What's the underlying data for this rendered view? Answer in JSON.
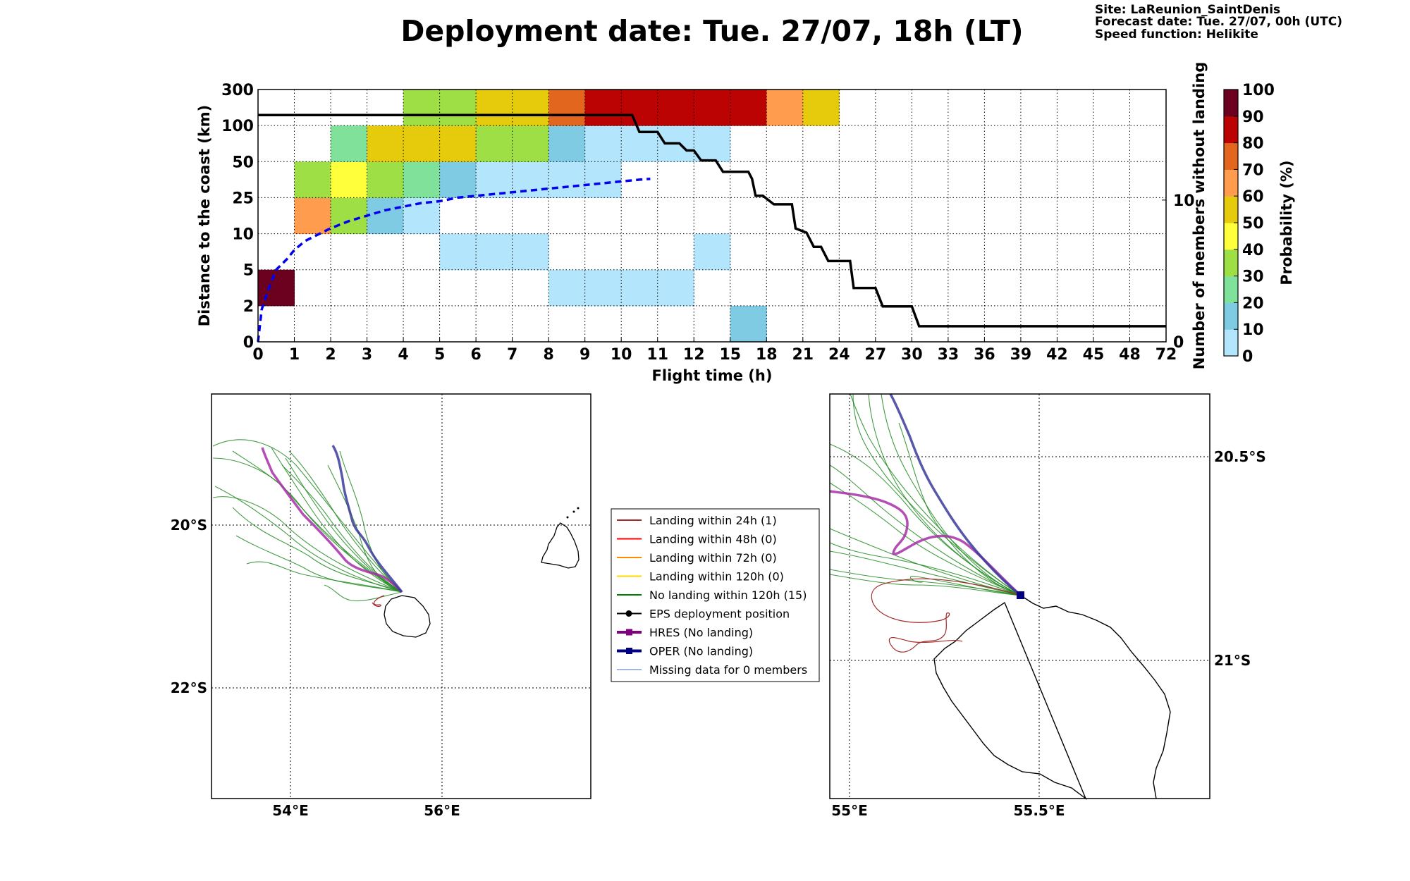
{
  "title": "Deployment date: Tue. 27/07, 18h (LT)",
  "info": {
    "site": "Site: LaReunion_SaintDenis",
    "forecast": "Forecast date: Tue. 27/07, 00h (UTC)",
    "speed": "Speed function: Helikite"
  },
  "colors": {
    "bins": [
      "#b3e5fc",
      "#7ecbe3",
      "#80e29a",
      "#9edf46",
      "#ffff3c",
      "#e5cb0c",
      "#ff9c4d",
      "#e2661e",
      "#bb0303",
      "#6b001f"
    ],
    "hres": "#a72fa8",
    "oper": "#3b3b9b",
    "members": "#228b22",
    "landing24": "#a52a2a",
    "prob_line": "#0000ee",
    "coast": "#000000"
  },
  "chart_data": [
    {
      "type": "heatmap",
      "xlabel": "Flight time (h)",
      "ylabel": "Distance to the coast (km)",
      "y2label": "Number of members without landing",
      "x_ticks": [
        "0",
        "1",
        "2",
        "3",
        "4",
        "5",
        "6",
        "7",
        "8",
        "9",
        "10",
        "11",
        "12",
        "15",
        "18",
        "21",
        "24",
        "27",
        "30",
        "33",
        "36",
        "39",
        "42",
        "45",
        "48",
        "72"
      ],
      "y_ticks": [
        "0",
        "2",
        "5",
        "10",
        "25",
        "50",
        "100",
        "300"
      ],
      "y2_ticks": [
        "0",
        "10"
      ],
      "colorbar": {
        "label": "Probability (%)",
        "ticks": [
          "0",
          "10",
          "20",
          "30",
          "40",
          "50",
          "60",
          "70",
          "80",
          "90",
          "100"
        ]
      },
      "cells": [
        {
          "x": 0,
          "y": 1,
          "p": 95
        },
        {
          "x": 1,
          "y": 3,
          "p": 60
        },
        {
          "x": 1,
          "y": 4,
          "p": 30
        },
        {
          "x": 2,
          "y": 3,
          "p": 30
        },
        {
          "x": 2,
          "y": 4,
          "p": 45
        },
        {
          "x": 2,
          "y": 5,
          "p": 20
        },
        {
          "x": 3,
          "y": 3,
          "p": 10
        },
        {
          "x": 3,
          "y": 4,
          "p": 30
        },
        {
          "x": 3,
          "y": 5,
          "p": 50
        },
        {
          "x": 4,
          "y": 3,
          "p": 5
        },
        {
          "x": 4,
          "y": 4,
          "p": 20
        },
        {
          "x": 4,
          "y": 5,
          "p": 50
        },
        {
          "x": 4,
          "y": 6,
          "p": 30
        },
        {
          "x": 5,
          "y": 2,
          "p": 5
        },
        {
          "x": 5,
          "y": 4,
          "p": 10
        },
        {
          "x": 5,
          "y": 5,
          "p": 50
        },
        {
          "x": 5,
          "y": 6,
          "p": 30
        },
        {
          "x": 6,
          "y": 2,
          "p": 5
        },
        {
          "x": 6,
          "y": 4,
          "p": 5
        },
        {
          "x": 6,
          "y": 5,
          "p": 30
        },
        {
          "x": 6,
          "y": 6,
          "p": 50
        },
        {
          "x": 7,
          "y": 2,
          "p": 5
        },
        {
          "x": 7,
          "y": 4,
          "p": 5
        },
        {
          "x": 7,
          "y": 5,
          "p": 30
        },
        {
          "x": 7,
          "y": 6,
          "p": 50
        },
        {
          "x": 8,
          "y": 1,
          "p": 5
        },
        {
          "x": 8,
          "y": 4,
          "p": 5
        },
        {
          "x": 8,
          "y": 5,
          "p": 10
        },
        {
          "x": 8,
          "y": 6,
          "p": 70
        },
        {
          "x": 9,
          "y": 1,
          "p": 5
        },
        {
          "x": 9,
          "y": 4,
          "p": 5
        },
        {
          "x": 9,
          "y": 5,
          "p": 5
        },
        {
          "x": 9,
          "y": 6,
          "p": 85
        },
        {
          "x": 10,
          "y": 1,
          "p": 5
        },
        {
          "x": 10,
          "y": 5,
          "p": 5
        },
        {
          "x": 10,
          "y": 6,
          "p": 85
        },
        {
          "x": 11,
          "y": 1,
          "p": 5
        },
        {
          "x": 11,
          "y": 5,
          "p": 5
        },
        {
          "x": 11,
          "y": 6,
          "p": 85
        },
        {
          "x": 12,
          "y": 2,
          "p": 5
        },
        {
          "x": 12,
          "y": 5,
          "p": 5
        },
        {
          "x": 12,
          "y": 6,
          "p": 85
        },
        {
          "x": 13,
          "y": 0,
          "p": 10
        },
        {
          "x": 13,
          "y": 6,
          "p": 85
        },
        {
          "x": 14,
          "y": 6,
          "p": 60
        },
        {
          "x": 15,
          "y": 6,
          "p": 50
        }
      ],
      "prob_line": [
        [
          0,
          0
        ],
        [
          0.1,
          0.9
        ],
        [
          0.3,
          1.5
        ],
        [
          0.5,
          2
        ],
        [
          0.8,
          2.3
        ],
        [
          1,
          2.55
        ],
        [
          1.3,
          2.8
        ],
        [
          1.6,
          2.95
        ],
        [
          2,
          3.15
        ],
        [
          2.5,
          3.35
        ],
        [
          3,
          3.5
        ],
        [
          3.5,
          3.65
        ],
        [
          4,
          3.75
        ],
        [
          4.5,
          3.85
        ],
        [
          5,
          3.9
        ],
        [
          5.5,
          4.0
        ],
        [
          6,
          4.05
        ],
        [
          6.5,
          4.1
        ],
        [
          7,
          4.15
        ],
        [
          7.5,
          4.2
        ],
        [
          8,
          4.25
        ],
        [
          8.5,
          4.3
        ],
        [
          9,
          4.35
        ],
        [
          9.5,
          4.4
        ],
        [
          10,
          4.45
        ],
        [
          10.5,
          4.5
        ],
        [
          10.8,
          4.52
        ]
      ],
      "members_line": [
        [
          0,
          16
        ],
        [
          10.3,
          16
        ],
        [
          10.5,
          14.8
        ],
        [
          11,
          14.8
        ],
        [
          11.2,
          14
        ],
        [
          11.6,
          14
        ],
        [
          11.8,
          13.5
        ],
        [
          12,
          13.5
        ],
        [
          12.2,
          12.8
        ],
        [
          12.6,
          12.8
        ],
        [
          12.8,
          12
        ],
        [
          13.5,
          12
        ],
        [
          13.6,
          11.5
        ],
        [
          13.7,
          10.3
        ],
        [
          13.9,
          10.3
        ],
        [
          14.2,
          9.7
        ],
        [
          14.7,
          9.7
        ],
        [
          14.8,
          8
        ],
        [
          15.1,
          7.7
        ],
        [
          15.3,
          6.7
        ],
        [
          15.5,
          6.7
        ],
        [
          15.7,
          5.7
        ],
        [
          16.3,
          5.7
        ],
        [
          16.4,
          3.8
        ],
        [
          17,
          3.8
        ],
        [
          17.2,
          2.5
        ],
        [
          18,
          2.5
        ],
        [
          18.2,
          1.1
        ],
        [
          25,
          1.1
        ]
      ]
    },
    {
      "type": "map",
      "name": "left-map",
      "lon_ticks": [
        "54°E",
        "56°E"
      ],
      "lat_ticks": [
        "20°S",
        "22°S"
      ],
      "lon_range": [
        53,
        58
      ],
      "lat_range": [
        -23.4,
        -18.4
      ]
    },
    {
      "type": "map",
      "name": "right-map",
      "lon_ticks": [
        "55°E",
        "55.5°E"
      ],
      "lat_ticks": [
        "20.5°S",
        "21°S"
      ],
      "lon_range": [
        54.95,
        55.95
      ],
      "lat_range": [
        -21.35,
        -20.35
      ]
    }
  ],
  "legend": [
    {
      "label": "Landing within 24h (1)",
      "color": "#a52a2a",
      "style": "line"
    },
    {
      "label": "Landing within 48h (0)",
      "color": "#ff0000",
      "style": "line"
    },
    {
      "label": "Landing within 72h (0)",
      "color": "#ff8c00",
      "style": "line"
    },
    {
      "label": "Landing within 120h (0)",
      "color": "#ffd700",
      "style": "line"
    },
    {
      "label": "No landing within 120h (15)",
      "color": "#008000",
      "style": "line"
    },
    {
      "label": "EPS deployment position",
      "color": "#000000",
      "style": "dot"
    },
    {
      "label": "HRES (No landing)",
      "color": "#800080",
      "style": "square"
    },
    {
      "label": "OPER (No landing)",
      "color": "#000080",
      "style": "square"
    },
    {
      "label": "Missing data for 0 members",
      "color": "#4169e1",
      "style": "thin"
    }
  ]
}
